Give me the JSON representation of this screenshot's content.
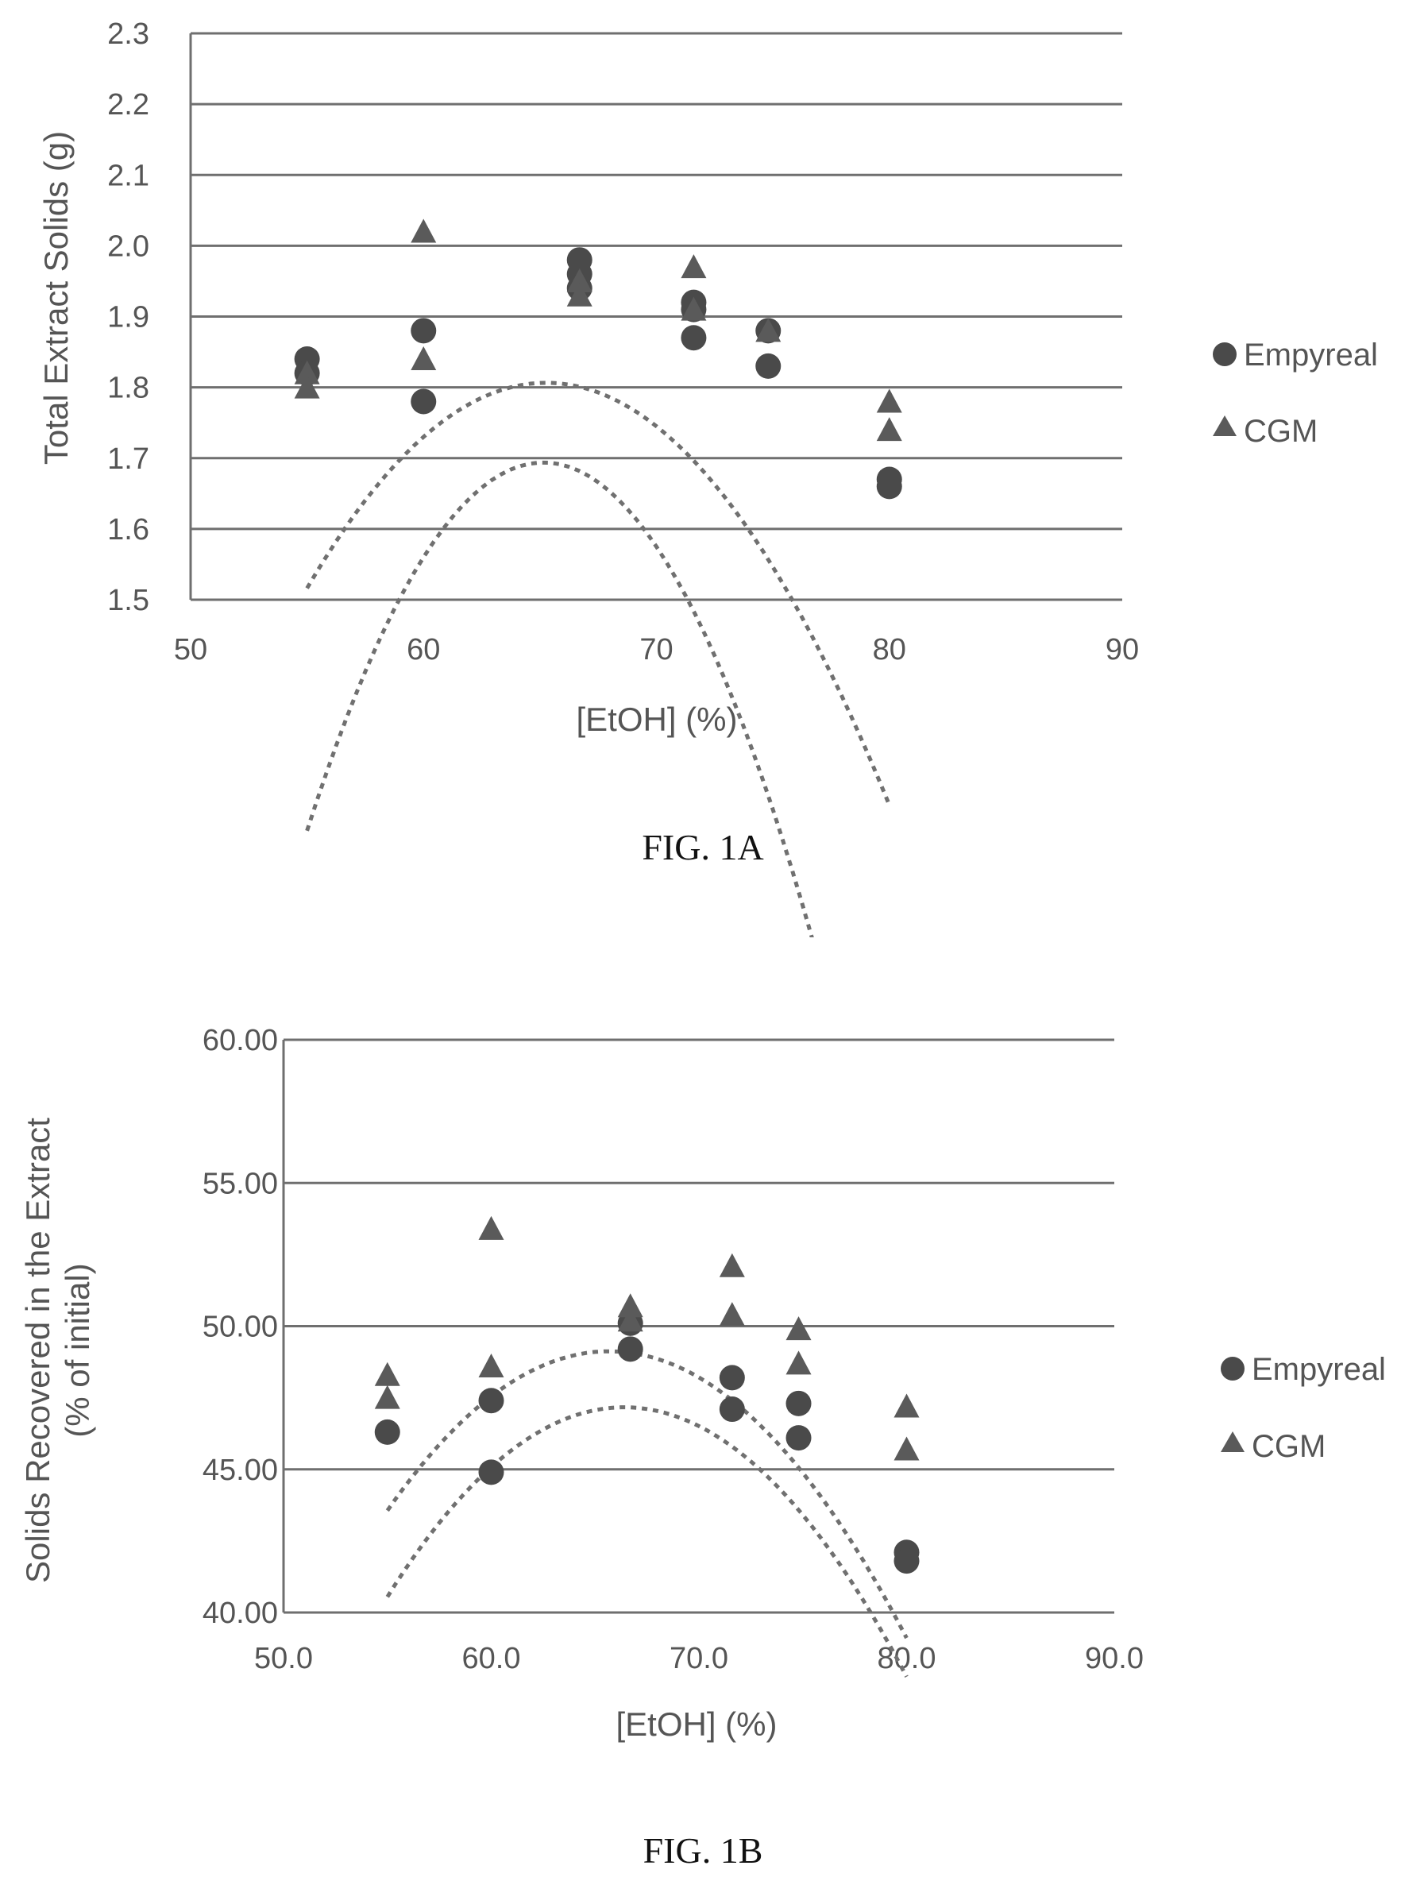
{
  "chart_data": [
    {
      "type": "scatter",
      "title": "",
      "caption": "FIG. 1A",
      "xlabel": "[EtOH] (%)",
      "ylabel": "Total Extract Solids (g)",
      "xlim": [
        50,
        90
      ],
      "ylim": [
        1.5,
        2.3
      ],
      "xticks": [
        "50",
        "60",
        "70",
        "80",
        "90"
      ],
      "yticks": [
        "1.5",
        "1.6",
        "1.7",
        "1.8",
        "1.9",
        "2.0",
        "2.1",
        "2.2",
        "2.3"
      ],
      "grid": true,
      "legend_position": "right",
      "series": [
        {
          "name": "Empyreal",
          "marker": "circle",
          "x": [
            55,
            55,
            60,
            60,
            66.7,
            66.7,
            66.7,
            71.6,
            71.6,
            71.6,
            74.8,
            74.8,
            80,
            80
          ],
          "y": [
            1.84,
            1.82,
            1.88,
            1.78,
            1.98,
            1.96,
            1.94,
            1.91,
            1.87,
            1.92,
            1.88,
            1.83,
            1.67,
            1.66
          ],
          "trend_coeffs": [
            -19.74,
            0.658,
            -0.00505
          ]
        },
        {
          "name": "CGM",
          "marker": "triangle",
          "x": [
            55,
            55,
            60,
            60,
            66.7,
            66.7,
            71.6,
            71.6,
            74.8,
            80,
            80
          ],
          "y": [
            1.82,
            1.8,
            2.02,
            1.84,
            1.95,
            1.93,
            1.97,
            1.91,
            1.88,
            1.78,
            1.74
          ],
          "trend_coeffs": [
            -9.91,
            0.359,
            -0.00275
          ]
        }
      ]
    },
    {
      "type": "scatter",
      "title": "",
      "caption": "FIG. 1B",
      "xlabel": "[EtOH] (%)",
      "ylabel_line1": "Solids Recovered in the Extract",
      "ylabel_line2": "(% of initial)",
      "xlim": [
        50,
        90
      ],
      "ylim": [
        40,
        60
      ],
      "xticks": [
        "50.0",
        "60.0",
        "70.0",
        "80.0",
        "90.0"
      ],
      "yticks": [
        "40.00",
        "45.00",
        "50.00",
        "55.00",
        "60.00"
      ],
      "grid": true,
      "legend_position": "right",
      "series": [
        {
          "name": "Empyreal",
          "marker": "circle",
          "x": [
            55,
            60,
            60,
            66.7,
            66.7,
            71.6,
            71.6,
            74.8,
            74.8,
            80,
            80
          ],
          "y": [
            46.3,
            47.4,
            44.9,
            49.2,
            50.1,
            48.2,
            47.1,
            47.3,
            46.1,
            42.1,
            41.8
          ],
          "trend_coeffs": [
            -177.28,
            6.76,
            -0.0509
          ]
        },
        {
          "name": "CGM",
          "marker": "triangle",
          "x": [
            55,
            55,
            60,
            60,
            66.7,
            66.7,
            71.6,
            71.6,
            74.8,
            74.8,
            80,
            80
          ],
          "y": [
            48.3,
            47.5,
            53.4,
            48.6,
            50.7,
            50.2,
            52.1,
            50.4,
            49.9,
            48.7,
            47.2,
            45.7
          ],
          "trend_coeffs": [
            -161.37,
            6.41,
            -0.0488
          ]
        }
      ]
    }
  ]
}
